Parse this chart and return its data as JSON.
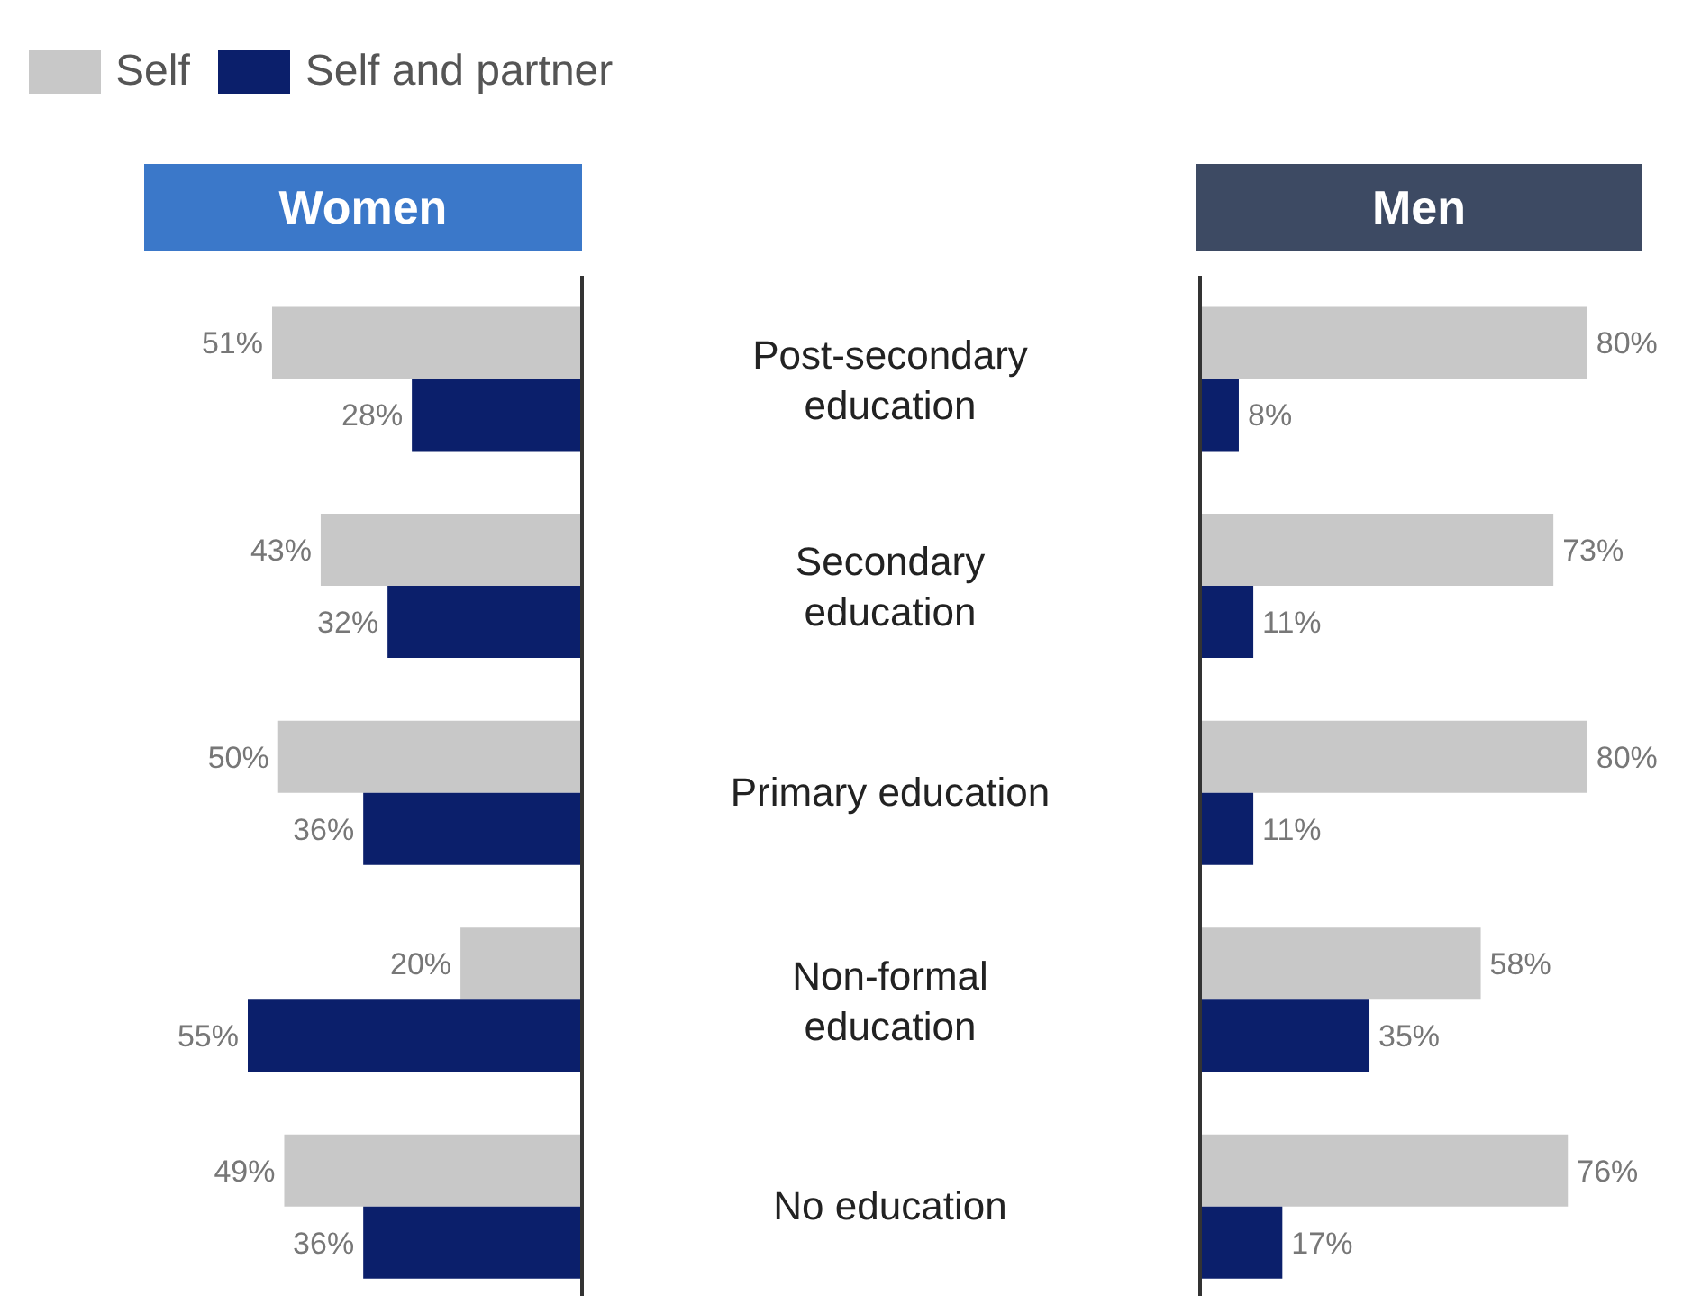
{
  "chart_data": [
    {
      "type": "bar",
      "orientation": "horizontal",
      "title": "Women",
      "categories": [
        "Post-secondary education",
        "Secondary education",
        "Primary education",
        "Non-formal education",
        "No education"
      ],
      "tick_labels": "y",
      "legend": "top left",
      "series": [
        {
          "name": "Self",
          "color": "#c8c8c8",
          "values": [
            51,
            43,
            50,
            20,
            49
          ],
          "value_labels": [
            "51%",
            "43%",
            "50%",
            "20%",
            "49%"
          ]
        },
        {
          "name": "Self and partner",
          "color": "#0b1f6b",
          "values": [
            28,
            32,
            36,
            55,
            36
          ],
          "value_labels": [
            "28%",
            "32%",
            "36%",
            "55%",
            "36%"
          ]
        }
      ]
    },
    {
      "type": "bar",
      "orientation": "horizontal",
      "title": "Men",
      "categories": [
        null,
        null,
        null,
        null,
        null
      ],
      "tick_labels": false,
      "series": [
        {
          "color": "#c8c8c8",
          "values": [
            80,
            73,
            80,
            58,
            76
          ],
          "value_labels": [
            "80%",
            "73%",
            "80%",
            "58%",
            "76%"
          ]
        },
        {
          "color": "#0b1f6b",
          "values": [
            8,
            11,
            11,
            35,
            17
          ],
          "value_labels": [
            "8%",
            "11%",
            "11%",
            "35%",
            "17%"
          ]
        }
      ]
    }
  ]
}
